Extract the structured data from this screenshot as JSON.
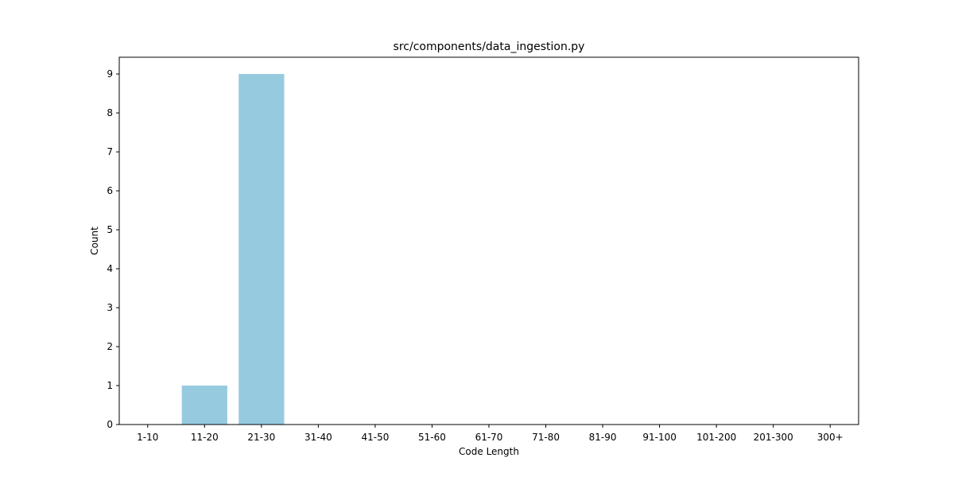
{
  "chart_data": {
    "type": "bar",
    "title": "src/components/data_ingestion.py",
    "xlabel": "Code Length",
    "ylabel": "Count",
    "categories": [
      "1-10",
      "11-20",
      "21-30",
      "31-40",
      "41-50",
      "51-60",
      "61-70",
      "71-80",
      "81-90",
      "91-100",
      "101-200",
      "201-300",
      "300+"
    ],
    "values": [
      0,
      1,
      9,
      0,
      0,
      0,
      0,
      0,
      0,
      0,
      0,
      0,
      0
    ],
    "ylim": [
      0,
      9.43
    ],
    "yticks": [
      0,
      1,
      2,
      3,
      4,
      5,
      6,
      7,
      8,
      9
    ],
    "bar_color": "#96cadf",
    "grid": false,
    "legend": "none"
  }
}
